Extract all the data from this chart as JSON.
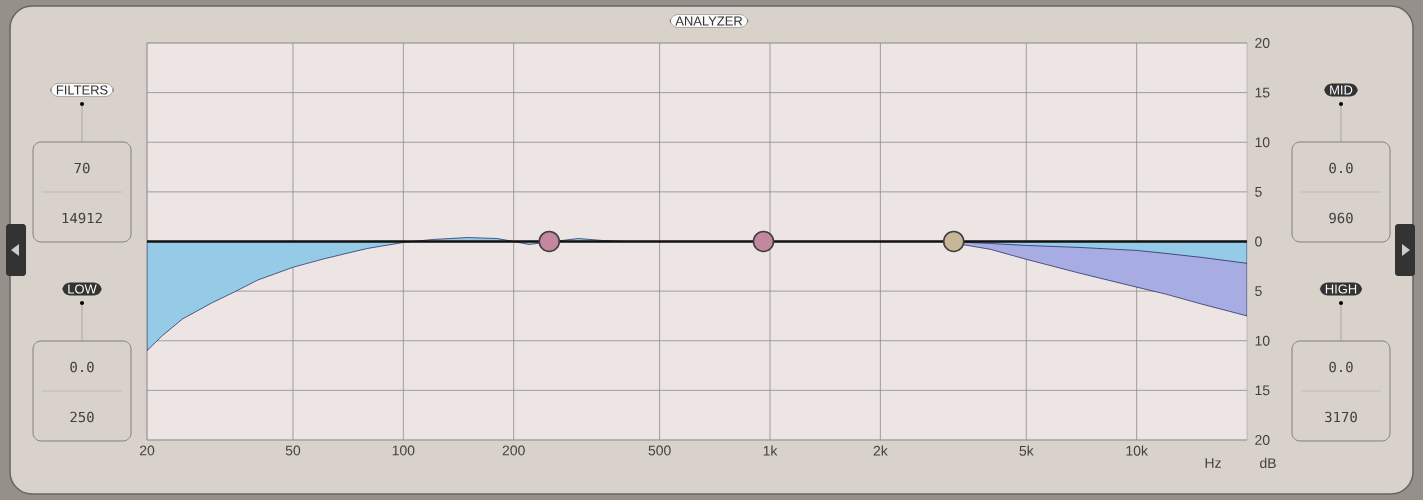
{
  "chart_data": {
    "type": "area",
    "xlabel": "Hz",
    "ylabel": "dB",
    "log": "x",
    "grid": true,
    "xlim": [
      20,
      20000
    ],
    "xticks": [
      20,
      50,
      100,
      200,
      500,
      {
        "value": 1000,
        "label": "1k"
      },
      {
        "value": 2000,
        "label": "2k"
      },
      {
        "value": 5000,
        "label": "5k"
      },
      {
        "value": 10000,
        "label": "10k"
      }
    ],
    "ylim": [
      -20,
      20
    ],
    "yticks": [
      {
        "value": -20,
        "label": "20"
      },
      {
        "value": -15,
        "label": "15"
      },
      {
        "value": -10,
        "label": "10"
      },
      {
        "value": -5,
        "label": "5"
      },
      0,
      5,
      10,
      15,
      20
    ],
    "series": [
      {
        "color": "#a7ade3",
        "x": [
          3000,
          4000,
          5000,
          7000,
          10000,
          12000,
          15000,
          20000
        ],
        "values": [
          0,
          -0.8,
          -1.8,
          -3.2,
          -4.6,
          -5.3,
          -6.3,
          -7.5
        ]
      },
      {
        "color": "#96cbe8",
        "x": [
          20,
          22,
          25,
          30,
          35,
          40,
          50,
          60,
          70,
          80,
          100,
          120,
          150,
          180,
          200,
          220,
          250,
          300,
          350,
          400,
          3000,
          4000,
          5000,
          7000,
          10000,
          12000,
          15000,
          20000
        ],
        "values": [
          -11,
          -9.5,
          -7.8,
          -6.2,
          -5,
          -3.9,
          -2.6,
          -1.8,
          -1.2,
          -0.7,
          -0.1,
          0.2,
          0.4,
          0.3,
          0,
          -0.3,
          null,
          0.3,
          0.1,
          0,
          0,
          -0.2,
          -0.4,
          -0.6,
          -0.9,
          -1.2,
          -1.6,
          -2.2
        ]
      },
      {
        "type": "scatter",
        "marker": "circle",
        "x": [
          250,
          960,
          3170
        ],
        "values": [
          0,
          0,
          0
        ],
        "colors": [
          "#c4879f",
          "#c4879f",
          "#c8b796"
        ]
      }
    ],
    "ref_lines": [
      {
        "axis": "y",
        "value": 0,
        "color": "#111111"
      }
    ],
    "annotations": [
      "ANALYZER",
      "FILTERS",
      "70",
      "14912",
      "LOW",
      "0.0",
      "250",
      "MID",
      "0.0",
      "960",
      "HIGH",
      "0.0",
      "3170"
    ]
  }
}
